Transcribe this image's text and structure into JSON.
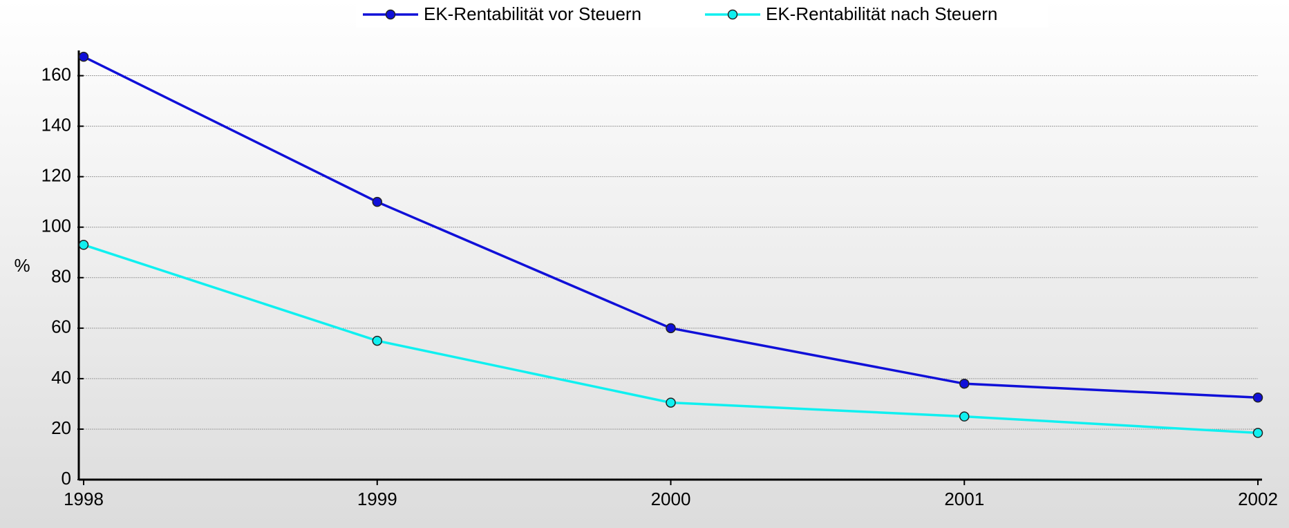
{
  "chart_data": {
    "type": "line",
    "y_label": "%",
    "categories": [
      "1998",
      "1999",
      "2000",
      "2001",
      "2002"
    ],
    "series": [
      {
        "name": "EK-Rentabilität vor Steuern",
        "color": "#1010d8",
        "values": [
          167.5,
          110,
          60,
          38,
          32.5
        ]
      },
      {
        "name": "EK-Rentabilität nach Steuern",
        "color": "#10f0f0",
        "values": [
          93,
          55,
          30.5,
          25,
          18.5
        ]
      }
    ],
    "ylim": [
      0,
      170
    ],
    "yticks": [
      0,
      20,
      40,
      60,
      80,
      100,
      120,
      140,
      160
    ],
    "grid": true
  }
}
